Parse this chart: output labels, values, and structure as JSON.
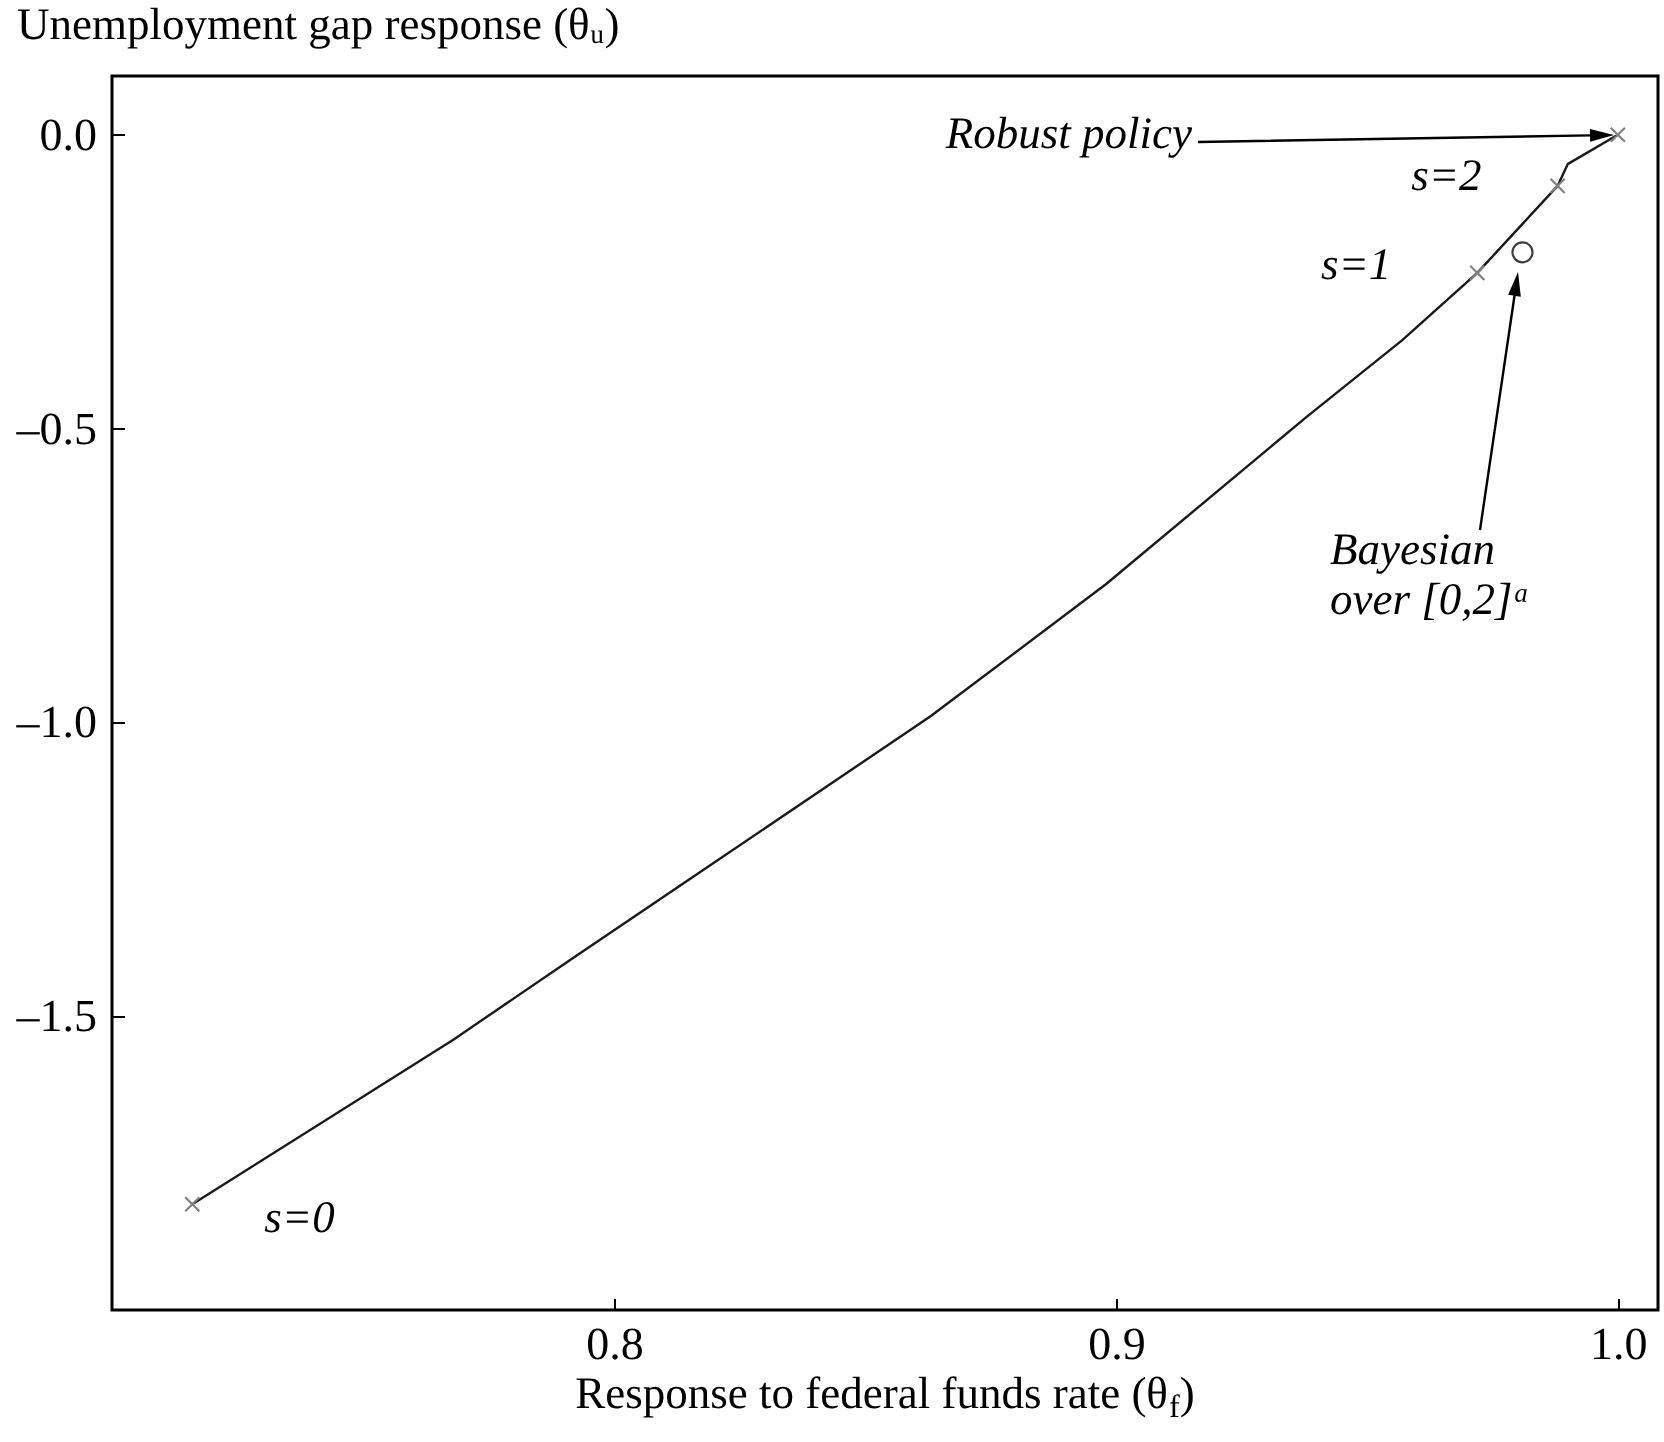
{
  "chart_data": {
    "type": "line",
    "xlabel": "Response to federal funds rate (θ$_{f}$)",
    "ylabel": "Unemployment gap response (θᵤ)",
    "xlim": [
      0.7,
      1.008
    ],
    "ylim": [
      -2.0,
      0.1
    ],
    "xticks": [
      0.8,
      0.9,
      {
        "value": 1.0,
        "label": "1.0"
      }
    ],
    "yticks": [
      {
        "value": 0,
        "label": "0.0"
      },
      {
        "value": -0.5,
        "label": "–0.5"
      },
      {
        "value": -1.0,
        "label": "–1.0"
      },
      {
        "value": -1.5,
        "label": "–1.5"
      }
    ],
    "series": [
      {
        "color": "#1a1a1a",
        "x": [
          0.716,
          0.768,
          0.792,
          0.818,
          0.863,
          0.898,
          0.938,
          0.957,
          0.972,
          0.988,
          0.99,
          1.0
        ],
        "values": [
          -1.82,
          -1.54,
          -1.4,
          -1.25,
          -0.99,
          -0.765,
          -0.48,
          -0.35,
          -0.235,
          -0.087,
          -0.05,
          0.0
        ]
      },
      {
        "type": "scatter",
        "color": "#808080",
        "marker": "cross",
        "x": [
          0.716,
          0.972,
          0.988,
          1.0
        ],
        "values": [
          -1.82,
          -0.235,
          -0.087,
          0.0
        ]
      },
      {
        "type": "scatter",
        "color": "#404040",
        "marker": "circle",
        "x": [
          0.981
        ],
        "values": [
          -0.2
        ]
      }
    ],
    "annotations": [
      "Robust policy",
      {
        "text": "s=2",
        "x": 0.988,
        "y": -0.087
      },
      {
        "text": "s=1",
        "x": 0.972,
        "y": -0.235
      },
      {
        "text": "s=0",
        "x": 0.716,
        "y": -1.82
      },
      "Bayesian over [0,2]ᵃ"
    ]
  }
}
